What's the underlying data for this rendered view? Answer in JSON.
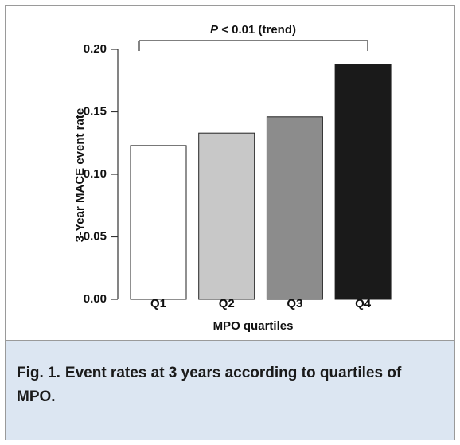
{
  "chart_data": {
    "type": "bar",
    "annotation": {
      "italic": "P",
      "text": " < 0.01 (trend)"
    },
    "ylabel": "3-Year MACE event rate",
    "xlabel": "MPO quartiles",
    "categories": [
      "Q1",
      "Q2",
      "Q3",
      "Q4"
    ],
    "values": [
      0.123,
      0.133,
      0.146,
      0.188
    ],
    "colors": [
      "#ffffff",
      "#c8c8c8",
      "#8c8c8c",
      "#1a1a1a"
    ],
    "ylim": [
      0,
      0.2
    ],
    "yticks": [
      {
        "value": 0,
        "label": "0.00"
      },
      {
        "value": 0.05,
        "label": "0.05"
      },
      {
        "value": 0.1,
        "label": "0.10"
      },
      {
        "value": 0.15,
        "label": "0.15"
      },
      {
        "value": 0.2,
        "label": "0.20"
      }
    ]
  },
  "caption": {
    "label": "Fig. 1.",
    "text": "Event rates at 3 years according to quartiles of MPO."
  }
}
